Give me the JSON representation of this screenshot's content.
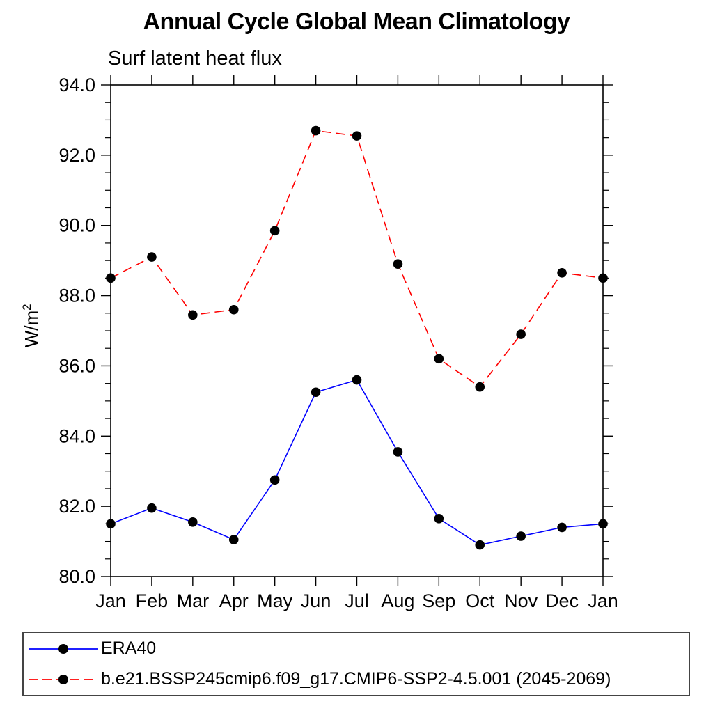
{
  "page": {
    "title": "Annual Cycle Global Mean Climatology",
    "subtitle": "Surf latent heat flux"
  },
  "chart_data": {
    "type": "line",
    "title": "Annual Cycle Global Mean Climatology",
    "subtitle": "Surf latent heat flux",
    "xlabel": "",
    "ylabel": "W/m^2",
    "ylabel_base": "W/m",
    "ylabel_exp": "2",
    "x_categories": [
      "Jan",
      "Feb",
      "Mar",
      "Apr",
      "May",
      "Jun",
      "Jul",
      "Aug",
      "Sep",
      "Oct",
      "Nov",
      "Dec",
      "Jan"
    ],
    "ylim": [
      80.0,
      94.0
    ],
    "y_major_tick_step": 2.0,
    "y_minor_tick_step": 0.5,
    "y_tick_labels": [
      "80.0",
      "82.0",
      "84.0",
      "86.0",
      "88.0",
      "90.0",
      "92.0",
      "94.0"
    ],
    "grid": false,
    "legend_position": "bottom-left-box",
    "marker": {
      "shape": "circle",
      "color": "#000000"
    },
    "series": [
      {
        "name": "ERA40",
        "color": "#0000ff",
        "line_style": "solid",
        "values": [
          81.5,
          81.95,
          81.55,
          81.05,
          82.75,
          85.25,
          85.6,
          83.55,
          81.65,
          80.9,
          81.15,
          81.4,
          81.5
        ]
      },
      {
        "name": "b.e21.BSSP245cmip6.f09_g17.CMIP6-SSP2-4.5.001 (2045-2069)",
        "color": "#ff0000",
        "line_style": "dashed",
        "values": [
          88.5,
          89.1,
          87.45,
          87.6,
          89.85,
          92.7,
          92.55,
          88.9,
          86.2,
          85.4,
          86.9,
          88.65,
          88.5
        ]
      }
    ]
  }
}
